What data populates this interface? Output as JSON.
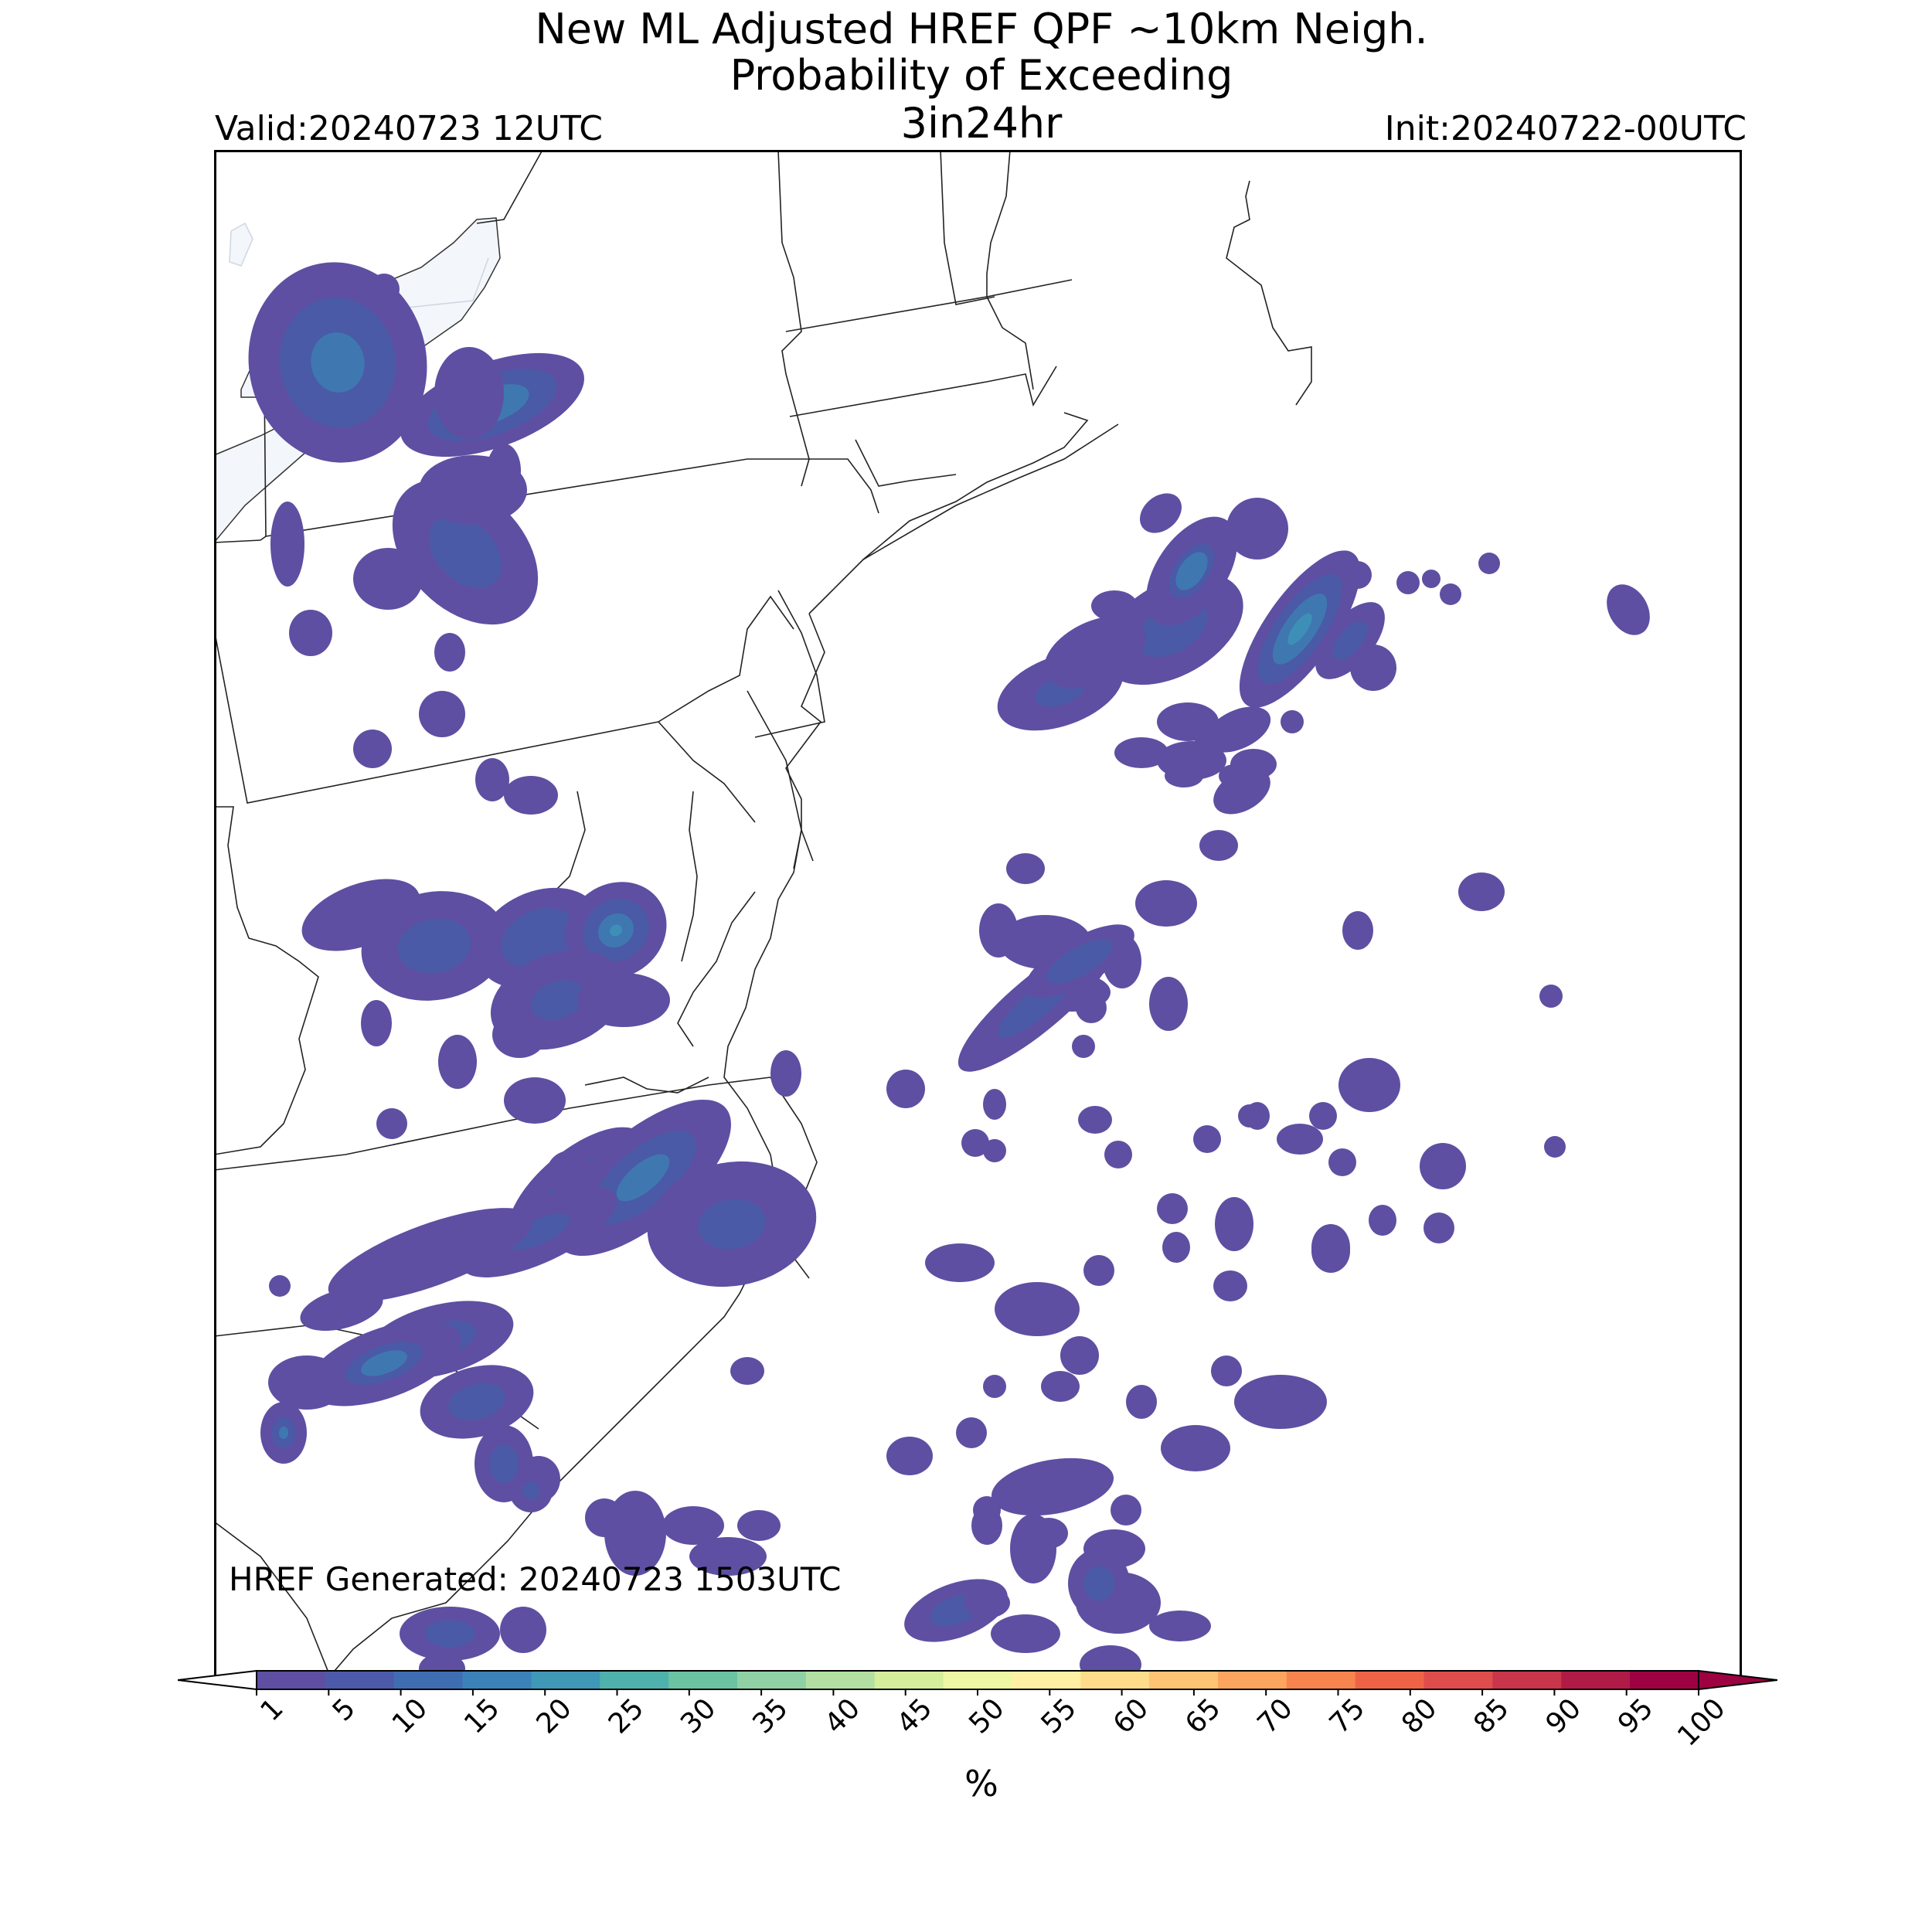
{
  "title": {
    "line1": "New ML Adjusted HREF QPF ~10km Neigh.",
    "line2": "Probability of Exceeding",
    "line3": "3in24hr"
  },
  "valid_label": "Valid:20240723 12UTC",
  "init_label": "Init:20240722-00UTC",
  "generated_label": "HREF Generated: 20240723 1503UTC",
  "colors": {
    "water": "#f3f6fb",
    "boundary": "#222222",
    "lake_line": "#cfd6e0"
  },
  "colorbar": {
    "ticks": [
      "1",
      "5",
      "10",
      "15",
      "20",
      "25",
      "30",
      "35",
      "40",
      "45",
      "50",
      "55",
      "60",
      "65",
      "70",
      "75",
      "80",
      "85",
      "90",
      "95",
      "100"
    ],
    "colors": [
      "#5e4fa2",
      "#4d5aaa",
      "#3f6db2",
      "#3a82b8",
      "#3e98b6",
      "#4fb1ab",
      "#6bc3a3",
      "#8fd1a4",
      "#b3e0a2",
      "#d5ee9b",
      "#eef8a4",
      "#fff0a3",
      "#fedc89",
      "#fdc473",
      "#fca55e",
      "#f7844e",
      "#ee6346",
      "#de4d4b",
      "#c9354b",
      "#b01a46",
      "#9e0142"
    ],
    "under_color": "#ffffff",
    "over_color": "#9e0142",
    "unit": "%"
  },
  "map_data": {
    "levels_pct": [
      1,
      5,
      10,
      15,
      20,
      25
    ],
    "level_colors": [
      "#5e4fa2",
      "#4a5aa7",
      "#3f78b0",
      "#3d8fb8",
      "#4aaab1",
      "#6cc2a0"
    ]
  }
}
